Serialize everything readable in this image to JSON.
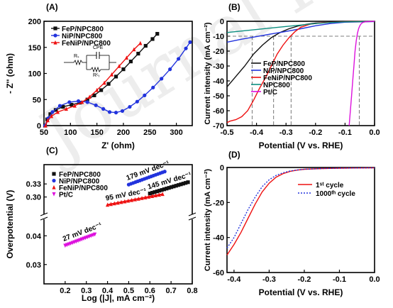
{
  "watermark": "Journal Pre-proof",
  "chart_data": [
    {
      "panel": "(A)",
      "type": "line",
      "xlabel": "Z' (ohm)",
      "ylabel": "- Z'' (ohm)",
      "xlim": [
        50,
        330
      ],
      "ylim": [
        0,
        200
      ],
      "xticks": [
        50,
        100,
        150,
        200,
        250,
        300
      ],
      "yticks": [
        0,
        50,
        100,
        150,
        200
      ],
      "legend_position": "top-left",
      "inset": {
        "cpe": "CPE",
        "rs": "Rₛ",
        "rct": "Rᶜₜ"
      },
      "series": [
        {
          "name": "FeP/NPC800",
          "color": "#111111",
          "marker": "square",
          "points": [
            [
              52,
              0
            ],
            [
              56,
              12
            ],
            [
              62,
              22
            ],
            [
              72,
              30
            ],
            [
              86,
              36
            ],
            [
              102,
              40
            ],
            [
              118,
              44
            ],
            [
              132,
              50
            ],
            [
              145,
              58
            ],
            [
              158,
              68
            ],
            [
              172,
              80
            ],
            [
              186,
              94
            ],
            [
              200,
              108
            ],
            [
              214,
              123
            ],
            [
              228,
              138
            ],
            [
              242,
              153
            ],
            [
              255,
              166
            ],
            [
              264,
              176
            ]
          ]
        },
        {
          "name": "NiP/NPC800",
          "color": "#2233dd",
          "marker": "circle",
          "points": [
            [
              52,
              0
            ],
            [
              58,
              14
            ],
            [
              66,
              26
            ],
            [
              80,
              38
            ],
            [
              98,
              45
            ],
            [
              115,
              47
            ],
            [
              132,
              45
            ],
            [
              148,
              39
            ],
            [
              162,
              32
            ],
            [
              174,
              26
            ],
            [
              186,
              25
            ],
            [
              198,
              28
            ],
            [
              212,
              36
            ],
            [
              226,
              46
            ],
            [
              240,
              58
            ],
            [
              256,
              73
            ],
            [
              272,
              90
            ],
            [
              288,
              108
            ],
            [
              304,
              128
            ],
            [
              318,
              148
            ],
            [
              326,
              160
            ]
          ]
        },
        {
          "name": "FeNiP/NPC800",
          "color": "#ee1111",
          "marker": "triangle",
          "points": [
            [
              53,
              0
            ],
            [
              57,
              10
            ],
            [
              64,
              18
            ],
            [
              76,
              26
            ],
            [
              92,
              32
            ],
            [
              108,
              38
            ],
            [
              122,
              45
            ],
            [
              136,
              55
            ],
            [
              150,
              68
            ],
            [
              164,
              82
            ],
            [
              178,
              98
            ],
            [
              192,
              114
            ],
            [
              206,
              130
            ],
            [
              220,
              146
            ],
            [
              232,
              158
            ]
          ]
        }
      ]
    },
    {
      "panel": "(B)",
      "type": "line",
      "xlabel": "Potential (V vs. RHE)",
      "ylabel": "Current intensity (mA cm⁻²)",
      "xlim": [
        -0.5,
        0.0
      ],
      "ylim": [
        -70,
        0
      ],
      "xticks": [
        -0.5,
        -0.4,
        -0.3,
        -0.2,
        -0.1,
        0.0
      ],
      "yticks": [
        0,
        -10,
        -20,
        -30,
        -40,
        -50,
        -60,
        -70
      ],
      "reference_lines": {
        "y": -10,
        "x": [
          -0.415,
          -0.342,
          -0.283,
          -0.052
        ]
      },
      "legend_position": "center-left",
      "series": [
        {
          "name": "FeP/NPC800",
          "color": "#111111",
          "points": [
            [
              -0.5,
              -44
            ],
            [
              -0.47,
              -37
            ],
            [
              -0.44,
              -30
            ],
            [
              -0.41,
              -22
            ],
            [
              -0.38,
              -16
            ],
            [
              -0.35,
              -11
            ],
            [
              -0.32,
              -7.5
            ],
            [
              -0.29,
              -5
            ],
            [
              -0.26,
              -3.2
            ],
            [
              -0.23,
              -2
            ],
            [
              -0.2,
              -1.2
            ],
            [
              -0.15,
              -0.6
            ],
            [
              -0.1,
              -0.3
            ],
            [
              0.0,
              -0.1
            ]
          ]
        },
        {
          "name": "NiP/NPC800",
          "color": "#2233dd",
          "points": [
            [
              -0.5,
              -14
            ],
            [
              -0.45,
              -12
            ],
            [
              -0.4,
              -10.3
            ],
            [
              -0.35,
              -8.5
            ],
            [
              -0.3,
              -6.8
            ],
            [
              -0.25,
              -5
            ],
            [
              -0.2,
              -3
            ],
            [
              -0.15,
              -1.5
            ],
            [
              -0.1,
              -0.6
            ],
            [
              0.0,
              -0.2
            ]
          ]
        },
        {
          "name": "FeNiP/NPC800",
          "color": "#ee1111",
          "points": [
            [
              -0.5,
              -68
            ],
            [
              -0.49,
              -67
            ],
            [
              -0.47,
              -66
            ],
            [
              -0.45,
              -64
            ],
            [
              -0.43,
              -60
            ],
            [
              -0.41,
              -53
            ],
            [
              -0.39,
              -45
            ],
            [
              -0.37,
              -38
            ],
            [
              -0.35,
              -30
            ],
            [
              -0.33,
              -22
            ],
            [
              -0.31,
              -16
            ],
            [
              -0.29,
              -11
            ],
            [
              -0.27,
              -7
            ],
            [
              -0.25,
              -4
            ],
            [
              -0.22,
              -2
            ],
            [
              -0.18,
              -1
            ],
            [
              -0.1,
              -0.3
            ],
            [
              0.0,
              -0.1
            ]
          ]
        },
        {
          "name": "NPC800",
          "color": "#0d8f80",
          "points": [
            [
              -0.5,
              -7.5
            ],
            [
              -0.45,
              -6.5
            ],
            [
              -0.4,
              -5.5
            ],
            [
              -0.35,
              -4.5
            ],
            [
              -0.3,
              -3.5
            ],
            [
              -0.25,
              -2.5
            ],
            [
              -0.2,
              -1.5
            ],
            [
              -0.15,
              -0.8
            ],
            [
              -0.1,
              -0.4
            ],
            [
              0.0,
              -0.1
            ]
          ]
        },
        {
          "name": "Pt/C",
          "color": "#dd11dd",
          "points": [
            [
              -0.086,
              -70
            ],
            [
              -0.082,
              -60
            ],
            [
              -0.078,
              -50
            ],
            [
              -0.074,
              -40
            ],
            [
              -0.07,
              -30
            ],
            [
              -0.066,
              -20
            ],
            [
              -0.062,
              -13
            ],
            [
              -0.058,
              -8
            ],
            [
              -0.054,
              -5
            ],
            [
              -0.05,
              -3
            ],
            [
              -0.045,
              -1.5
            ],
            [
              -0.04,
              -0.8
            ],
            [
              -0.03,
              -0.3
            ],
            [
              0.0,
              0
            ]
          ]
        }
      ]
    },
    {
      "panel": "(C)",
      "type": "scatter",
      "xlabel": "Log (|J|, mA cm⁻²)",
      "ylabel": "Overpotential (V)",
      "xlim": [
        0.1,
        0.8
      ],
      "xticks": [
        0.2,
        0.3,
        0.4,
        0.5,
        0.6,
        0.7,
        0.8
      ],
      "axis_break": true,
      "upper_segment": {
        "ylim": [
          0.265,
          0.345
        ],
        "yticks": [
          0.3,
          0.33
        ]
      },
      "lower_segment": {
        "ylim": [
          0.025,
          0.045
        ],
        "yticks": [
          0.03,
          0.04
        ]
      },
      "legend_position": "top-left",
      "series": [
        {
          "name": "FeP/NPC800",
          "color": "#111111",
          "marker": "square",
          "segment": "upper",
          "slope_label": "145 mV dec⁻¹",
          "x_range": [
            0.6,
            0.78
          ],
          "y_range": [
            0.308,
            0.334
          ]
        },
        {
          "name": "NiP/NPC800",
          "color": "#2233dd",
          "marker": "circle",
          "segment": "upper",
          "slope_label": "179 mV dec⁻¹",
          "x_range": [
            0.5,
            0.67
          ],
          "y_range": [
            0.3285,
            0.3585
          ]
        },
        {
          "name": "FeNiP/NPC800",
          "color": "#ee1111",
          "marker": "triangle",
          "segment": "upper",
          "slope_label": "95 mV dec⁻¹",
          "x_range": [
            0.4,
            0.66
          ],
          "y_range": [
            0.282,
            0.3065
          ]
        },
        {
          "name": "Pt/C",
          "color": "#dd11dd",
          "marker": "triangle-down",
          "segment": "lower",
          "slope_label": "27 mV dec⁻¹",
          "x_range": [
            0.2,
            0.34
          ],
          "y_range": [
            0.0366,
            0.0405
          ]
        }
      ]
    },
    {
      "panel": "(D)",
      "type": "line",
      "xlabel": "Potential (V vs. RHE)",
      "ylabel": "Current intensity (mA cm⁻²)",
      "xlim": [
        -0.42,
        0.0
      ],
      "ylim": [
        -60,
        0
      ],
      "xticks": [
        -0.4,
        -0.3,
        -0.2,
        -0.1,
        0.0
      ],
      "yticks": [
        0,
        -20,
        -40,
        -60
      ],
      "legend_position": "top-right",
      "series": [
        {
          "name": "1ˢᵗ cycle",
          "color": "#ee1111",
          "dash": "solid",
          "points": [
            [
              -0.42,
              -50
            ],
            [
              -0.4,
              -44
            ],
            [
              -0.38,
              -37
            ],
            [
              -0.36,
              -29
            ],
            [
              -0.34,
              -21
            ],
            [
              -0.32,
              -14
            ],
            [
              -0.3,
              -9
            ],
            [
              -0.28,
              -5.5
            ],
            [
              -0.26,
              -3.5
            ],
            [
              -0.24,
              -2.2
            ],
            [
              -0.22,
              -1.5
            ],
            [
              -0.2,
              -1.0
            ],
            [
              -0.15,
              -0.6
            ],
            [
              -0.1,
              -0.4
            ],
            [
              0.0,
              -0.2
            ]
          ]
        },
        {
          "name": "1000ᵗʰ cycle",
          "color": "#2233dd",
          "dash": "dotted",
          "points": [
            [
              -0.42,
              -46
            ],
            [
              -0.4,
              -40
            ],
            [
              -0.38,
              -32
            ],
            [
              -0.36,
              -24
            ],
            [
              -0.34,
              -17
            ],
            [
              -0.32,
              -11
            ],
            [
              -0.3,
              -7
            ],
            [
              -0.28,
              -4.5
            ],
            [
              -0.26,
              -3
            ],
            [
              -0.24,
              -2
            ],
            [
              -0.22,
              -1.4
            ],
            [
              -0.2,
              -1.0
            ],
            [
              -0.15,
              -0.6
            ],
            [
              -0.1,
              -0.4
            ],
            [
              0.0,
              -0.2
            ]
          ]
        }
      ]
    }
  ]
}
